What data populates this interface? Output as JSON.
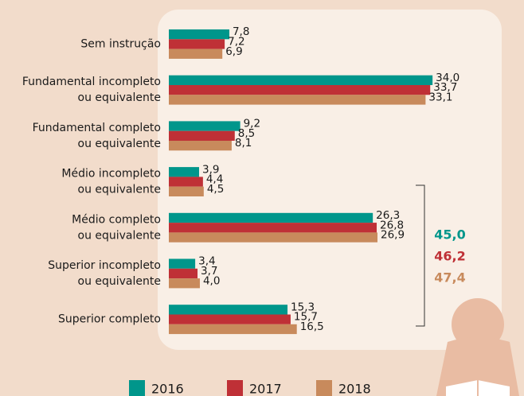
{
  "chart_data": {
    "type": "bar",
    "orientation": "horizontal",
    "categories": [
      "Sem instrução",
      "Fundamental incompleto\nou equivalente",
      "Fundamental completo\nou equivalente",
      "Médio incompleto\nou equivalente",
      "Médio completo\nou equivalente",
      "Superior incompleto\nou equivalente",
      "Superior completo"
    ],
    "series": [
      {
        "name": "2016",
        "color": "#00968b",
        "values": [
          7.8,
          34.0,
          9.2,
          3.9,
          26.3,
          3.4,
          15.3
        ],
        "value_labels": [
          "7,8",
          "34,0",
          "9,2",
          "3,9",
          "26,3",
          "3,4",
          "15,3"
        ]
      },
      {
        "name": "2017",
        "color": "#bf3036",
        "values": [
          7.2,
          33.7,
          8.5,
          4.4,
          26.8,
          3.7,
          15.7
        ],
        "value_labels": [
          "7,2",
          "33,7",
          "8,5",
          "4,4",
          "26,8",
          "3,7",
          "15,7"
        ]
      },
      {
        "name": "2018",
        "color": "#c88a5c",
        "values": [
          6.9,
          33.1,
          8.1,
          4.5,
          26.9,
          4.0,
          16.5
        ],
        "value_labels": [
          "6,9",
          "33,1",
          "8,1",
          "4,5",
          "26,9",
          "4,0",
          "16,5"
        ]
      }
    ],
    "annotations": [
      {
        "label": "45,0",
        "color": "#00968b"
      },
      {
        "label": "46,2",
        "color": "#bf3036"
      },
      {
        "label": "47,4",
        "color": "#c88a5c"
      }
    ],
    "legend": "bottom"
  }
}
